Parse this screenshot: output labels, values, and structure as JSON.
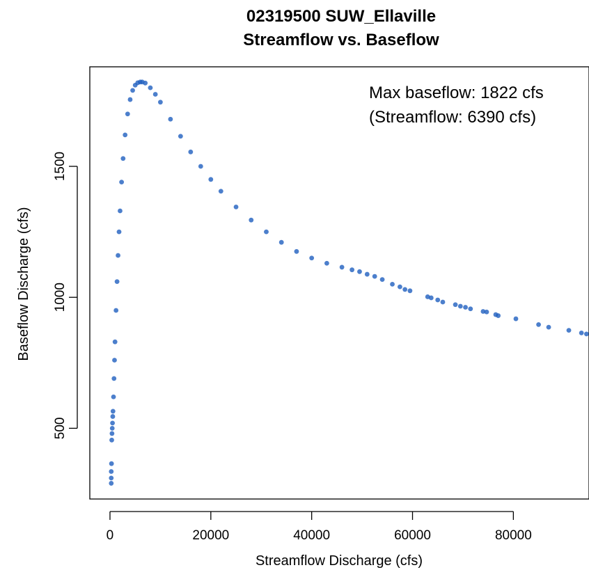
{
  "chart_data": {
    "type": "scatter",
    "title": "02319500 SUW_Ellaville",
    "subtitle": "Streamflow vs. Baseflow",
    "xlabel": "Streamflow Discharge (cfs)",
    "ylabel": "Baseflow Discharge (cfs)",
    "xlim": [
      -4000,
      95000
    ],
    "ylim": [
      230,
      1880
    ],
    "x_ticks": [
      0,
      20000,
      40000,
      60000,
      80000
    ],
    "x_tick_labels": [
      "0",
      "20000",
      "40000",
      "60000",
      "80000"
    ],
    "y_ticks": [
      500,
      1000,
      1500
    ],
    "y_tick_labels": [
      "500",
      "1000",
      "1500"
    ],
    "grid": false,
    "legend": "none",
    "point_color": "#1f5fbf",
    "annotations": [
      "Max baseflow: 1822 cfs",
      "(Streamflow: 6390 cfs)"
    ],
    "series": [
      {
        "points": [
          [
            250,
            290
          ],
          [
            250,
            310
          ],
          [
            250,
            335
          ],
          [
            300,
            365
          ],
          [
            350,
            455
          ],
          [
            400,
            480
          ],
          [
            450,
            500
          ],
          [
            500,
            520
          ],
          [
            550,
            545
          ],
          [
            600,
            565
          ],
          [
            700,
            620
          ],
          [
            800,
            690
          ],
          [
            900,
            760
          ],
          [
            1000,
            830
          ],
          [
            1200,
            950
          ],
          [
            1400,
            1060
          ],
          [
            1600,
            1160
          ],
          [
            1800,
            1250
          ],
          [
            2000,
            1330
          ],
          [
            2300,
            1440
          ],
          [
            2600,
            1530
          ],
          [
            3000,
            1620
          ],
          [
            3500,
            1700
          ],
          [
            4000,
            1755
          ],
          [
            4500,
            1790
          ],
          [
            5000,
            1810
          ],
          [
            5500,
            1819
          ],
          [
            6000,
            1822
          ],
          [
            6390,
            1822
          ],
          [
            7000,
            1818
          ],
          [
            8000,
            1800
          ],
          [
            9000,
            1775
          ],
          [
            10000,
            1745
          ],
          [
            12000,
            1680
          ],
          [
            14000,
            1615
          ],
          [
            16000,
            1555
          ],
          [
            18000,
            1500
          ],
          [
            20000,
            1450
          ],
          [
            22000,
            1405
          ],
          [
            25000,
            1345
          ],
          [
            28000,
            1295
          ],
          [
            31000,
            1250
          ],
          [
            34000,
            1210
          ],
          [
            37000,
            1175
          ],
          [
            40000,
            1150
          ],
          [
            43000,
            1130
          ],
          [
            46000,
            1115
          ],
          [
            48000,
            1105
          ],
          [
            49500,
            1098
          ],
          [
            51000,
            1088
          ],
          [
            52500,
            1080
          ],
          [
            54000,
            1068
          ],
          [
            56000,
            1050
          ],
          [
            57500,
            1040
          ],
          [
            58500,
            1030
          ],
          [
            59500,
            1025
          ],
          [
            63000,
            1002
          ],
          [
            63700,
            998
          ],
          [
            65000,
            990
          ],
          [
            66000,
            982
          ],
          [
            68500,
            972
          ],
          [
            69500,
            966
          ],
          [
            70500,
            962
          ],
          [
            71500,
            956
          ],
          [
            74000,
            946
          ],
          [
            74700,
            944
          ],
          [
            76500,
            934
          ],
          [
            77000,
            930
          ],
          [
            80500,
            918
          ],
          [
            85000,
            896
          ],
          [
            87000,
            886
          ],
          [
            91000,
            874
          ],
          [
            93500,
            864
          ],
          [
            94500,
            860
          ]
        ]
      }
    ]
  }
}
